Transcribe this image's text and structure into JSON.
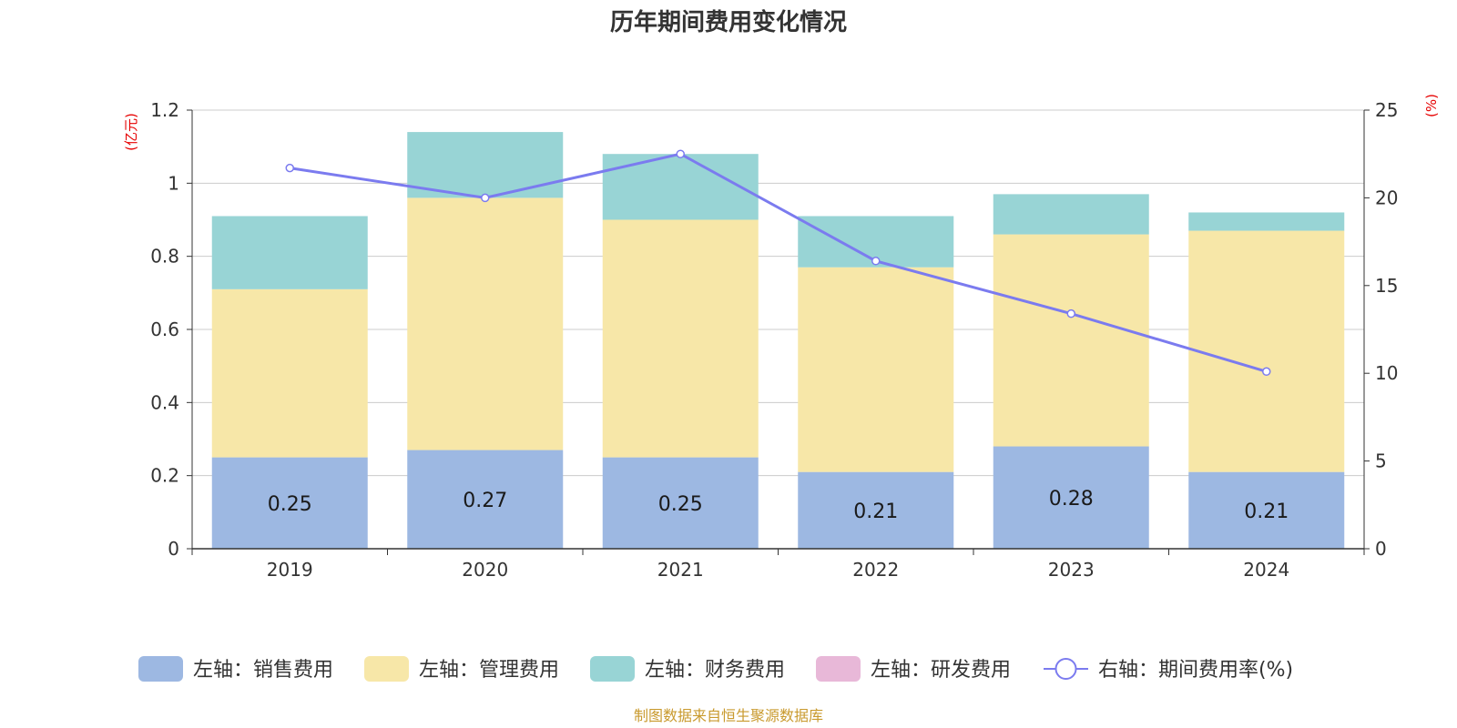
{
  "chart_data": {
    "type": "bar",
    "title": "历年期间费用变化情况",
    "categories": [
      "2019",
      "2020",
      "2021",
      "2022",
      "2023",
      "2024"
    ],
    "left_axis": {
      "unit": "(亿元)",
      "ylim": [
        0,
        1.2
      ],
      "ticks": [
        "0",
        "0.2",
        "0.4",
        "0.6",
        "0.8",
        "1",
        "1.2"
      ]
    },
    "right_axis": {
      "unit": "(%)",
      "ylim": [
        0,
        25
      ],
      "ticks": [
        "0",
        "5",
        "10",
        "15",
        "20",
        "25"
      ]
    },
    "series": [
      {
        "name": "左轴：销售费用",
        "type": "bar",
        "axis": "left",
        "color": "#9db8e2",
        "values": [
          0.25,
          0.27,
          0.25,
          0.21,
          0.28,
          0.21
        ],
        "labels": [
          "0.25",
          "0.27",
          "0.25",
          "0.21",
          "0.28",
          "0.21"
        ]
      },
      {
        "name": "左轴：管理费用",
        "type": "bar",
        "axis": "left",
        "color": "#f7e7a8",
        "values": [
          0.46,
          0.69,
          0.65,
          0.56,
          0.58,
          0.66
        ]
      },
      {
        "name": "左轴：财务费用",
        "type": "bar",
        "axis": "left",
        "color": "#98d4d5",
        "values": [
          0.2,
          0.18,
          0.18,
          0.14,
          0.11,
          0.05
        ]
      },
      {
        "name": "左轴：研发费用",
        "type": "bar",
        "axis": "left",
        "color": "#e8b8d8",
        "values": [
          0,
          0,
          0,
          0,
          0,
          0
        ]
      },
      {
        "name": "右轴：期间费用率(%)",
        "type": "line",
        "axis": "right",
        "color": "#7b7bef",
        "values": [
          21.7,
          20.0,
          22.5,
          16.4,
          13.4,
          10.1
        ]
      }
    ],
    "grid": true,
    "legend_position": "bottom"
  },
  "source": "制图数据来自恒生聚源数据库"
}
